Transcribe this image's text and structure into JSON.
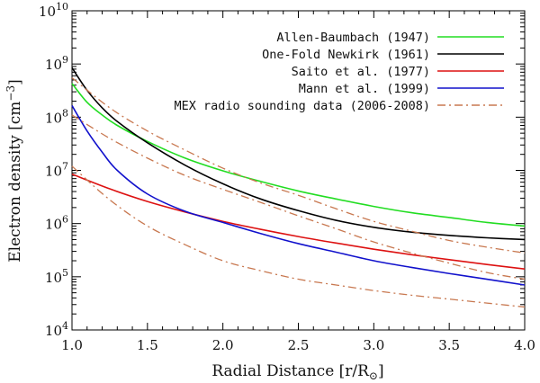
{
  "chart_data": {
    "type": "line",
    "title": "",
    "xlabel": "Radial Distance [r/R",
    "xlabel_sub": "⊙",
    "xlabel_end": "]",
    "ylabel": "Electron density [cm",
    "ylabel_sup": "−3",
    "ylabel_end": "]",
    "xlim": [
      1.0,
      4.0
    ],
    "ylim_log10": [
      4,
      10
    ],
    "yscale": "log",
    "x_ticks": [
      1.0,
      1.5,
      2.0,
      2.5,
      3.0,
      3.5,
      4.0
    ],
    "x_tick_labels": [
      "1.0",
      "1.5",
      "2.0",
      "2.5",
      "3.0",
      "3.5",
      "4.0"
    ],
    "y_ticks_log10": [
      4,
      5,
      6,
      7,
      8,
      9,
      10
    ],
    "y_tick_base": "10",
    "y_tick_exponents": [
      "4",
      "5",
      "6",
      "7",
      "8",
      "9",
      "10"
    ],
    "legend_position": "top-right",
    "x": [
      1.0,
      1.5,
      2.0,
      2.5,
      3.0,
      3.5,
      4.0
    ],
    "series": [
      {
        "name": "Allen-Baumbach (1947)",
        "color": "#22dd22",
        "dash": "solid",
        "x": [
          1.0,
          1.1,
          1.2,
          1.3,
          1.5,
          1.75,
          2.0,
          2.25,
          2.5,
          2.75,
          3.0,
          3.25,
          3.5,
          3.75,
          4.0
        ],
        "values": [
          430000000,
          190000000,
          110000000,
          70000000,
          35000000,
          17000000,
          9800000,
          6200000,
          4100000,
          2900000,
          2100000,
          1600000,
          1300000,
          1050000,
          900000
        ]
      },
      {
        "name": "One-Fold Newkirk (1961)",
        "color": "#000000",
        "dash": "solid",
        "x": [
          1.0,
          1.1,
          1.2,
          1.3,
          1.5,
          1.75,
          2.0,
          2.25,
          2.5,
          2.75,
          3.0,
          3.25,
          3.5,
          3.75,
          4.0
        ],
        "values": [
          850000000,
          320000000,
          150000000,
          83000000,
          33000000,
          12500000,
          5600000,
          2900000,
          1750000,
          1150000,
          850000,
          690000,
          600000,
          540000,
          500000
        ]
      },
      {
        "name": "Saito et al. (1977)",
        "color": "#dd1111",
        "dash": "solid",
        "x": [
          1.0,
          1.25,
          1.5,
          1.75,
          2.0,
          2.25,
          2.5,
          2.75,
          3.0,
          3.25,
          3.5,
          3.75,
          4.0
        ],
        "values": [
          8500000,
          4500000,
          2600000,
          1650000,
          1100000,
          780000,
          570000,
          430000,
          330000,
          260000,
          210000,
          170000,
          140000
        ]
      },
      {
        "name": "Mann et al. (1999)",
        "color": "#1111cc",
        "dash": "solid",
        "x": [
          1.0,
          1.1,
          1.2,
          1.3,
          1.5,
          1.75,
          2.0,
          2.25,
          2.5,
          2.75,
          3.0,
          3.25,
          3.5,
          3.75,
          4.0
        ],
        "values": [
          165000000,
          55000000,
          22000000,
          10000000,
          3600000,
          1700000,
          1050000,
          650000,
          420000,
          290000,
          200000,
          150000,
          115000,
          90000,
          70000
        ]
      },
      {
        "name": "MEX radio sounding data (2006-2008)",
        "color": "#c87850",
        "dash": "dashdot",
        "x": [
          1.0,
          1.25,
          1.5,
          1.75,
          2.0,
          2.25,
          2.5,
          2.75,
          3.0,
          3.25,
          3.5,
          3.75,
          4.0
        ],
        "values": [
          550000000,
          150000000,
          55000000,
          24000000,
          11000000,
          5800000,
          3400000,
          1900000,
          1100000,
          720000,
          480000,
          360000,
          280000
        ]
      },
      {
        "name": "MEX radio sounding data (2006-2008)",
        "color": "#c87850",
        "dash": "dashdot",
        "x": [
          1.0,
          1.25,
          1.5,
          1.75,
          2.0,
          2.25,
          2.5,
          2.75,
          3.0,
          3.25,
          3.5,
          3.75,
          4.0
        ],
        "values": [
          110000000,
          40000000,
          17000000,
          8000000,
          4400000,
          2500000,
          1400000,
          800000,
          450000,
          280000,
          180000,
          120000,
          90000
        ]
      },
      {
        "name": "MEX radio sounding data (2006-2008)",
        "color": "#c87850",
        "dash": "dashdot",
        "x": [
          1.0,
          1.25,
          1.5,
          1.75,
          2.0,
          2.25,
          2.5,
          2.75,
          3.0,
          3.25,
          3.5,
          3.75,
          4.0
        ],
        "values": [
          12000000,
          2800000,
          900000,
          400000,
          200000,
          130000,
          90000,
          70000,
          55000,
          45000,
          38000,
          32000,
          27000
        ]
      }
    ],
    "legend": [
      {
        "label": "Allen-Baumbach (1947)",
        "color": "#22dd22",
        "dash": "solid"
      },
      {
        "label": "One-Fold Newkirk (1961)",
        "color": "#000000",
        "dash": "solid"
      },
      {
        "label": "Saito et al. (1977)",
        "color": "#dd1111",
        "dash": "solid"
      },
      {
        "label": "Mann et al. (1999)",
        "color": "#1111cc",
        "dash": "solid"
      },
      {
        "label": "MEX radio sounding data (2006-2008)",
        "color": "#c87850",
        "dash": "dashdot"
      }
    ]
  }
}
